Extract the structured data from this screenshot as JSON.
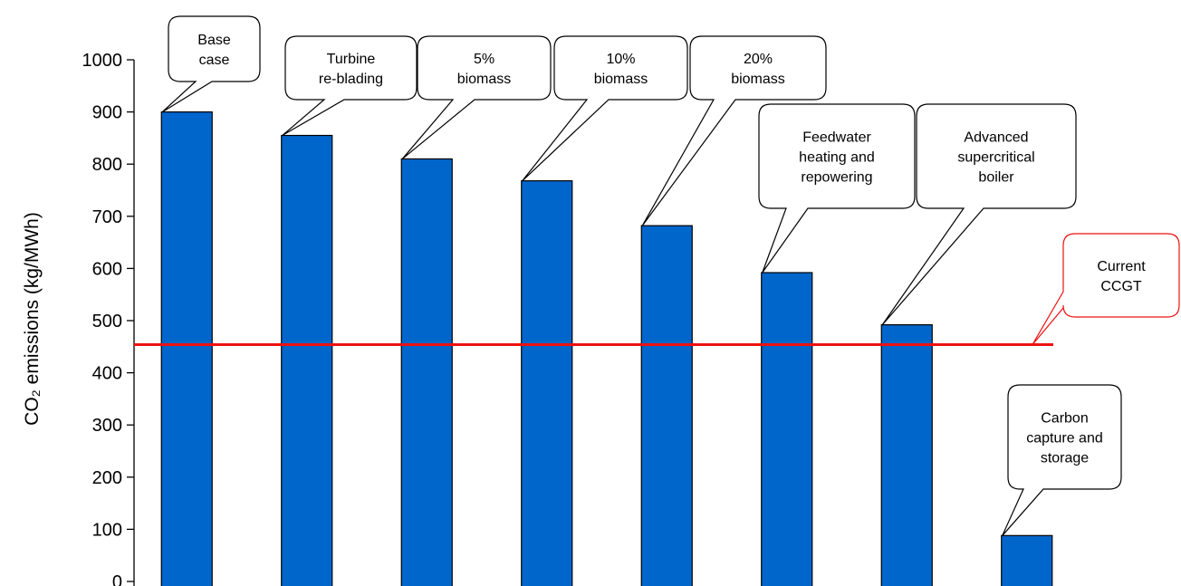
{
  "chart_data": {
    "type": "bar",
    "ylabel": "CO₂ emissions (kg/MWh)",
    "ylim": [
      0,
      1000
    ],
    "yticks": [
      0,
      100,
      200,
      300,
      400,
      500,
      600,
      700,
      800,
      900,
      1000
    ],
    "grid": false,
    "bar_color": "#0066cc",
    "categories": [
      "Base case",
      "Turbine re-blading",
      "5% biomass",
      "10% biomass",
      "20% biomass",
      "Feedwater heating and repowering",
      "Advanced supercritical boiler",
      "Carbon capture and storage"
    ],
    "values": [
      900,
      855,
      810,
      768,
      682,
      592,
      492,
      88
    ],
    "annotations": [
      [
        "Base",
        "case"
      ],
      [
        "Turbine",
        "re-blading"
      ],
      [
        "5%",
        "biomass"
      ],
      [
        "10%",
        "biomass"
      ],
      [
        "20%",
        "biomass"
      ],
      [
        "Feedwater",
        "heating and",
        "repowering"
      ],
      [
        "Advanced",
        "supercritical",
        "boiler"
      ],
      [
        "Carbon",
        "capture and",
        "storage"
      ]
    ],
    "reference_line": {
      "value": 454,
      "label": [
        "Current",
        "CCGT"
      ],
      "color": "#ee1111"
    }
  }
}
